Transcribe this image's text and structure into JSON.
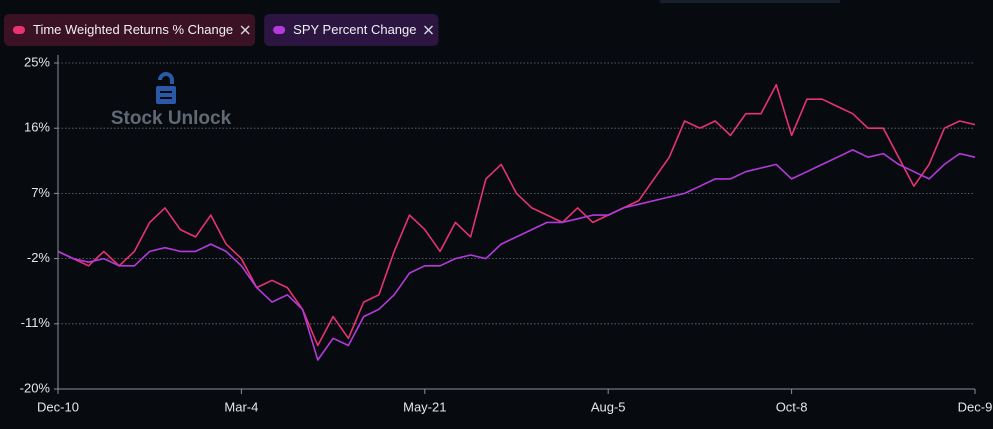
{
  "chart_data": {
    "type": "line",
    "watermark": "Stock Unlock",
    "categories": [
      "Dec-10",
      null,
      null,
      null,
      null,
      null,
      null,
      null,
      null,
      null,
      null,
      null,
      "Mar-4",
      null,
      null,
      null,
      null,
      null,
      null,
      null,
      null,
      null,
      null,
      null,
      "May-21",
      null,
      null,
      null,
      null,
      null,
      null,
      null,
      null,
      null,
      null,
      null,
      "Aug-5",
      null,
      null,
      null,
      null,
      null,
      null,
      null,
      null,
      null,
      null,
      null,
      "Oct-8",
      null,
      null,
      null,
      null,
      null,
      null,
      null,
      null,
      null,
      null,
      null,
      "Dec-9"
    ],
    "series": [
      {
        "name": "Time Weighted Returns % Change",
        "color": "#e8336e",
        "values": [
          -1,
          -2,
          -3,
          -1,
          -3,
          -1,
          3,
          5,
          2,
          1,
          4,
          0,
          -2,
          -6,
          -5,
          -6,
          -9,
          -14,
          -10,
          -13,
          -8,
          -7,
          -1,
          4,
          2,
          -1,
          3,
          1,
          9,
          11,
          7,
          5,
          4,
          3,
          5,
          3,
          4,
          5,
          6,
          9,
          12,
          17,
          16,
          17,
          15,
          18,
          18,
          22,
          15,
          20,
          20,
          19,
          18,
          16,
          16,
          12,
          8,
          11,
          16,
          17,
          16.5
        ]
      },
      {
        "name": "SPY Percent Change",
        "color": "#b43adb",
        "values": [
          -1,
          -2,
          -2.5,
          -2,
          -3,
          -3,
          -1,
          -0.5,
          -1,
          -1,
          0,
          -1,
          -3,
          -6,
          -8,
          -7,
          -9,
          -16,
          -13,
          -14,
          -10,
          -9,
          -7,
          -4,
          -3,
          -3,
          -2,
          -1.5,
          -2,
          0,
          1,
          2,
          3,
          3,
          3.5,
          4,
          4,
          5,
          5.5,
          6,
          6.5,
          7,
          8,
          9,
          9,
          10,
          10.5,
          11,
          9,
          10,
          11,
          12,
          13,
          12,
          12.5,
          11,
          10,
          9,
          11,
          12.5,
          12
        ]
      }
    ],
    "ylim": [
      -20,
      25
    ],
    "yticks": [
      {
        "value": 25,
        "label": "25%"
      },
      {
        "value": 16,
        "label": "16%"
      },
      {
        "value": 7,
        "label": "7%"
      },
      {
        "value": -2,
        "label": "-2%"
      },
      {
        "value": -11,
        "label": "-11%"
      },
      {
        "value": -20,
        "label": "-20%"
      }
    ],
    "grid": true
  }
}
